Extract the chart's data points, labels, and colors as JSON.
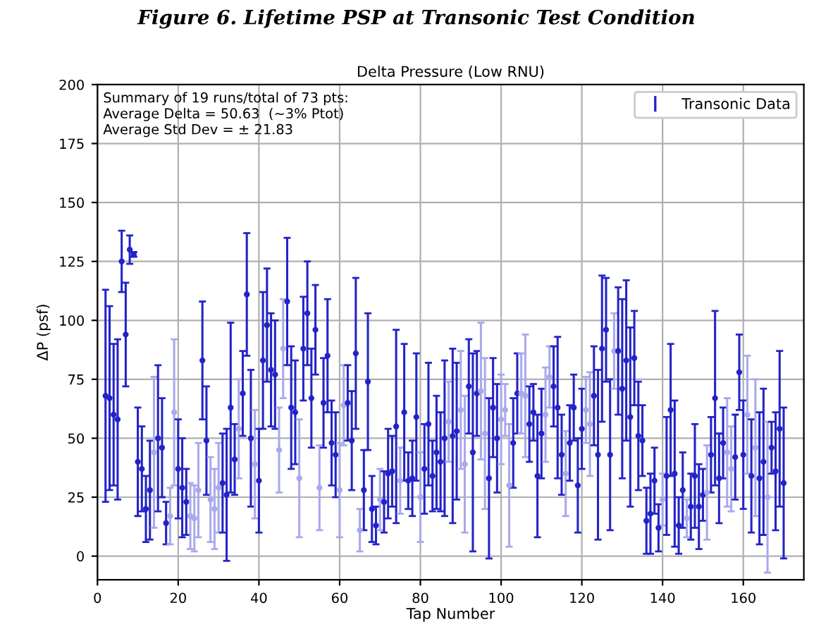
{
  "chart_data": {
    "type": "scatter",
    "title": "Delta Pressure (Low RNU)",
    "xlabel": "Tap Number",
    "ylabel": "ΔP (psf)",
    "annotations": [
      "Figure 6. Lifetime PSP at Transonic Test Condition",
      "Summary of 19 runs/total of 73 pts:",
      "Average Delta = 50.63  (~3% Ptot)",
      "Average Std Dev = ± 21.83"
    ],
    "xlim": [
      0,
      175
    ],
    "ylim": [
      -10,
      200
    ],
    "xticks": [
      0,
      20,
      40,
      60,
      80,
      100,
      120,
      140,
      160
    ],
    "yticks": [
      0,
      25,
      50,
      75,
      100,
      125,
      150,
      175,
      200
    ],
    "grid": true,
    "legend": "top right",
    "marker": "circle",
    "series": [
      {
        "name": "Transonic Data",
        "color": "#2323c8",
        "x": [
          2,
          3,
          4,
          5,
          6,
          7,
          8,
          9,
          10,
          11,
          12,
          13,
          14,
          15,
          16,
          17,
          18,
          19,
          20,
          21,
          22,
          23,
          24,
          25,
          26,
          27,
          28,
          29,
          30,
          31,
          32,
          33,
          34,
          35,
          36,
          37,
          38,
          39,
          40,
          41,
          42,
          43,
          44,
          45,
          46,
          47,
          48,
          49,
          50,
          51,
          52,
          53,
          54,
          55,
          56,
          57,
          58,
          59,
          60,
          61,
          62,
          63,
          64,
          65,
          66,
          67,
          68,
          69,
          70,
          71,
          72,
          73,
          74,
          75,
          76,
          77,
          78,
          79,
          80,
          81,
          82,
          83,
          84,
          85,
          86,
          87,
          88,
          89,
          90,
          91,
          92,
          93,
          94,
          95,
          96,
          97,
          98,
          99,
          100,
          101,
          102,
          103,
          104,
          105,
          106,
          107,
          108,
          109,
          110,
          111,
          112,
          113,
          114,
          115,
          116,
          117,
          118,
          119,
          120,
          121,
          122,
          123,
          124,
          125,
          126,
          127,
          128,
          129,
          130,
          131,
          132,
          133,
          134,
          135,
          136,
          137,
          138,
          139,
          140,
          141,
          142,
          143,
          144,
          145,
          146,
          147,
          148,
          149,
          150,
          151,
          152,
          153,
          154,
          155,
          156,
          157,
          158,
          159,
          160,
          161,
          162,
          163,
          164,
          165,
          166,
          167,
          168,
          169,
          170
        ],
        "values": [
          68,
          67,
          60,
          58,
          125,
          94,
          130,
          128,
          40,
          37,
          20,
          28,
          44,
          50,
          46,
          14,
          17,
          61,
          37,
          29,
          23,
          17,
          16,
          28,
          83,
          49,
          24,
          20,
          29,
          31,
          26,
          63,
          41,
          54,
          69,
          111,
          50,
          39,
          32,
          83,
          98,
          79,
          77,
          45,
          88,
          108,
          63,
          61,
          33,
          88,
          103,
          67,
          96,
          29,
          65,
          85,
          48,
          43,
          28,
          64,
          65,
          49,
          86,
          11,
          28,
          74,
          20,
          13,
          24,
          23,
          35,
          36,
          55,
          32,
          61,
          32,
          33,
          59,
          25,
          37,
          56,
          34,
          44,
          40,
          50,
          57,
          51,
          53,
          62,
          39,
          72,
          44,
          69,
          70,
          52,
          33,
          63,
          50,
          58,
          62,
          30,
          48,
          69,
          69,
          68,
          56,
          61,
          34,
          52,
          60,
          76,
          72,
          63,
          43,
          35,
          48,
          63,
          30,
          54,
          62,
          56,
          68,
          43,
          88,
          96,
          43,
          87,
          87,
          71,
          83,
          59,
          84,
          51,
          49,
          15,
          18,
          32,
          12,
          24,
          34,
          62,
          35,
          13,
          28,
          16,
          21,
          34,
          21,
          26,
          27,
          43,
          67,
          33,
          48,
          44,
          37,
          42,
          78,
          43,
          60,
          34,
          46,
          33,
          40,
          25,
          46,
          36,
          54,
          31
        ],
        "errors": [
          45,
          39,
          30,
          34,
          13,
          22,
          6,
          1,
          23,
          18,
          14,
          21,
          32,
          31,
          21,
          9,
          12,
          31,
          21,
          21,
          14,
          14,
          14,
          20,
          25,
          23,
          18,
          17,
          19,
          21,
          28,
          36,
          15,
          21,
          18,
          26,
          29,
          23,
          22,
          29,
          24,
          24,
          23,
          18,
          21,
          27,
          26,
          22,
          25,
          22,
          22,
          21,
          19,
          18,
          19,
          24,
          18,
          18,
          20,
          17,
          16,
          21,
          32,
          9,
          17,
          29,
          14,
          8,
          13,
          13,
          19,
          15,
          41,
          14,
          29,
          12,
          16,
          27,
          19,
          19,
          26,
          15,
          24,
          21,
          33,
          17,
          37,
          29,
          25,
          29,
          20,
          42,
          18,
          29,
          32,
          34,
          21,
          23,
          19,
          11,
          26,
          19,
          17,
          17,
          26,
          16,
          12,
          26,
          19,
          20,
          13,
          17,
          30,
          17,
          18,
          16,
          14,
          20,
          17,
          14,
          22,
          21,
          36,
          31,
          22,
          32,
          16,
          27,
          38,
          34,
          38,
          20,
          23,
          15,
          14,
          17,
          14,
          10,
          11,
          25,
          28,
          31,
          12,
          16,
          8,
          14,
          22,
          18,
          11,
          20,
          16,
          37,
          19,
          15,
          23,
          18,
          18,
          16,
          23,
          25,
          24,
          29,
          28,
          31,
          32,
          11,
          25,
          33,
          32
        ],
        "colors": [
          "#2323c8",
          "#2323c8",
          "#2323c8",
          "#2323c8",
          "#2323c8",
          "#2323c8",
          "#2323c8",
          "#2323c8",
          "#2323c8",
          "#2323c8",
          "#2323c8",
          "#2323c8",
          "#a9a9ec",
          "#2323c8",
          "#2323c8",
          "#2323c8",
          "#a9a9ec",
          "#a9a9ec",
          "#2323c8",
          "#2323c8",
          "#2323c8",
          "#a9a9ec",
          "#a9a9ec",
          "#a9a9ec",
          "#2323c8",
          "#2323c8",
          "#a9a9ec",
          "#a9a9ec",
          "#a9a9ec",
          "#2323c8",
          "#2323c8",
          "#2323c8",
          "#2323c8",
          "#a9a9ec",
          "#2323c8",
          "#2323c8",
          "#2323c8",
          "#a9a9ec",
          "#2323c8",
          "#2323c8",
          "#2323c8",
          "#2323c8",
          "#2323c8",
          "#a9a9ec",
          "#a9a9ec",
          "#2323c8",
          "#2323c8",
          "#2323c8",
          "#a9a9ec",
          "#2323c8",
          "#2323c8",
          "#2323c8",
          "#2323c8",
          "#a9a9ec",
          "#2323c8",
          "#2323c8",
          "#2323c8",
          "#2323c8",
          "#a9a9ec",
          "#a9a9ec",
          "#2323c8",
          "#2323c8",
          "#2323c8",
          "#a9a9ec",
          "#2323c8",
          "#2323c8",
          "#2323c8",
          "#2323c8",
          "#a9a9ec",
          "#2323c8",
          "#2323c8",
          "#2323c8",
          "#2323c8",
          "#a9a9ec",
          "#2323c8",
          "#2323c8",
          "#2323c8",
          "#2323c8",
          "#a9a9ec",
          "#2323c8",
          "#2323c8",
          "#2323c8",
          "#2323c8",
          "#2323c8",
          "#2323c8",
          "#a9a9ec",
          "#2323c8",
          "#2323c8",
          "#a9a9ec",
          "#a9a9ec",
          "#2323c8",
          "#2323c8",
          "#2323c8",
          "#a9a9ec",
          "#a9a9ec",
          "#2323c8",
          "#2323c8",
          "#2323c8",
          "#a9a9ec",
          "#a9a9ec",
          "#a9a9ec",
          "#2323c8",
          "#2323c8",
          "#a9a9ec",
          "#a9a9ec",
          "#2323c8",
          "#2323c8",
          "#2323c8",
          "#2323c8",
          "#a9a9ec",
          "#a9a9ec",
          "#2323c8",
          "#2323c8",
          "#2323c8",
          "#a9a9ec",
          "#2323c8",
          "#2323c8",
          "#2323c8",
          "#2323c8",
          "#a9a9ec",
          "#a9a9ec",
          "#2323c8",
          "#2323c8",
          "#2323c8",
          "#2323c8",
          "#2323c8",
          "#a9a9ec",
          "#2323c8",
          "#2323c8",
          "#2323c8",
          "#2323c8",
          "#2323c8",
          "#2323c8",
          "#2323c8",
          "#2323c8",
          "#2323c8",
          "#2323c8",
          "#2323c8",
          "#a9a9ec",
          "#2323c8",
          "#2323c8",
          "#2323c8",
          "#2323c8",
          "#2323c8",
          "#a9a9ec",
          "#2323c8",
          "#2323c8",
          "#2323c8",
          "#2323c8",
          "#a9a9ec",
          "#2323c8",
          "#2323c8",
          "#2323c8",
          "#2323c8",
          "#a9a9ec",
          "#a9a9ec",
          "#2323c8",
          "#2323c8",
          "#2323c8",
          "#a9a9ec",
          "#2323c8",
          "#a9a9ec",
          "#2323c8",
          "#2323c8",
          "#a9a9ec",
          "#2323c8",
          "#2323c8",
          "#2323c8",
          "#2323c8"
        ]
      }
    ]
  }
}
